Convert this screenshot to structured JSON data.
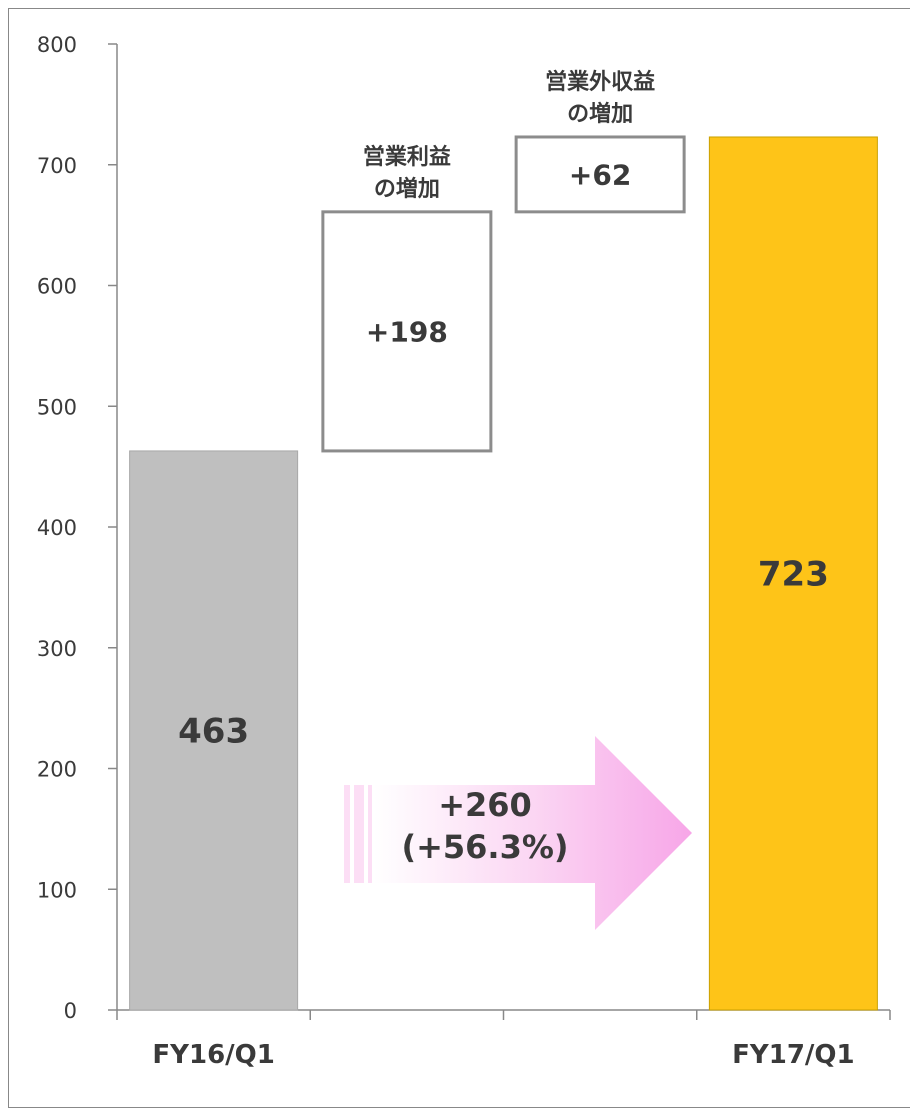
{
  "chart_data": {
    "type": "waterfall",
    "ylim": [
      0,
      800
    ],
    "y_ticks": [
      0,
      100,
      200,
      300,
      400,
      500,
      600,
      700,
      800
    ],
    "grid": false,
    "categories": [
      "FY16/Q1",
      "",
      "",
      "FY17/Q1"
    ],
    "bars": [
      {
        "category": "FY16/Q1",
        "kind": "total",
        "value": 463,
        "label": "463",
        "color": "#bfbfbf"
      },
      {
        "category": "",
        "kind": "increase",
        "base": 463,
        "value": 198,
        "label": "+198",
        "annotation": [
          "営業利益",
          "の増加"
        ]
      },
      {
        "category": "",
        "kind": "increase",
        "base": 661,
        "value": 62,
        "label": "+62",
        "annotation": [
          "営業外収益",
          "の増加"
        ]
      },
      {
        "category": "FY17/Q1",
        "kind": "total",
        "value": 723,
        "label": "723",
        "color": "#fec418"
      }
    ],
    "change_arrow": {
      "lines": [
        "+260",
        "(+56.3%)"
      ],
      "color": "#f7a6e8"
    }
  }
}
